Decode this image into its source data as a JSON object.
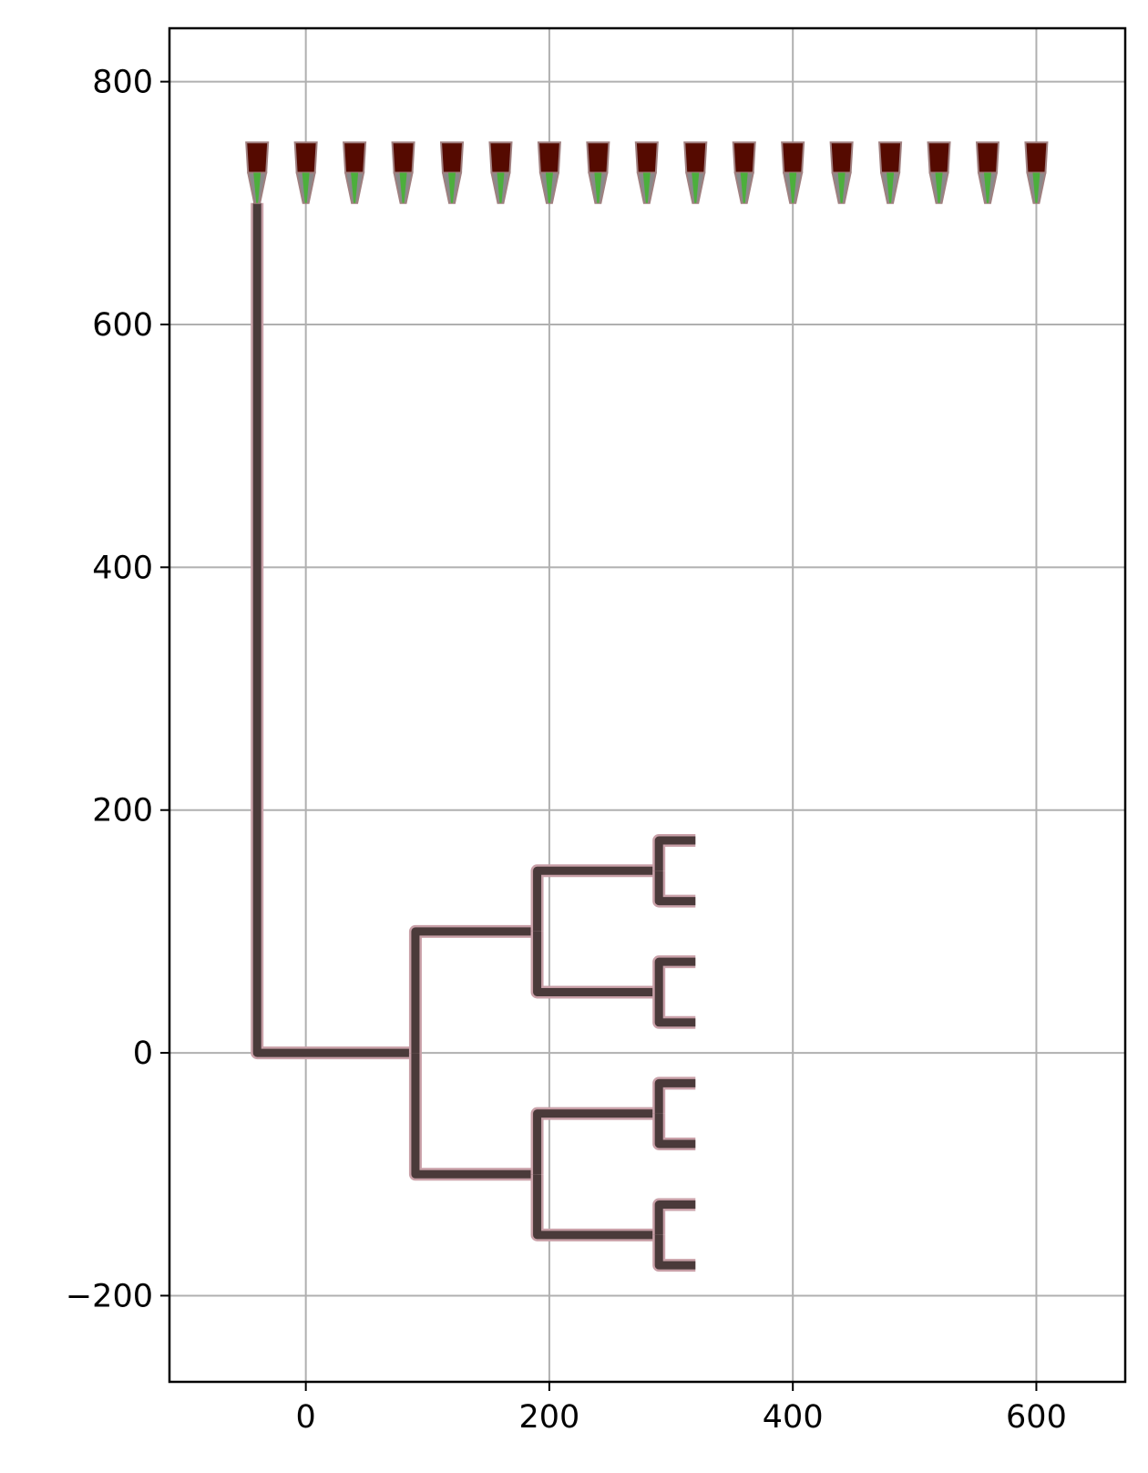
{
  "chart_data": {
    "type": "layout",
    "xlim": [
      -112,
      673
    ],
    "ylim": [
      -271,
      844
    ],
    "xticks": [
      0,
      200,
      400,
      600
    ],
    "yticks": [
      {
        "value": -200,
        "label": "−200"
      },
      0,
      200,
      400,
      600,
      800
    ],
    "grid": true,
    "grating_couplers": {
      "x": [
        -40,
        0,
        40,
        80,
        120,
        160,
        200,
        240,
        280,
        320,
        360,
        400,
        440,
        480,
        520,
        560,
        600
      ],
      "y_top": 750,
      "y_mid": 725,
      "y_bottom": 700,
      "color": "#550a00",
      "taper_color": "#4caf3c"
    },
    "route_color": "#4a3a3a",
    "routes": [
      {
        "x": [
          -40,
          -40,
          90
        ],
        "y": [
          700,
          0,
          0
        ]
      },
      {
        "x": [
          90,
          90,
          190
        ],
        "y": [
          0,
          100,
          100
        ]
      },
      {
        "x": [
          90,
          90,
          190
        ],
        "y": [
          0,
          -100,
          -100
        ]
      },
      {
        "x": [
          190,
          190,
          290
        ],
        "y": [
          100,
          150,
          150
        ]
      },
      {
        "x": [
          190,
          190,
          290
        ],
        "y": [
          100,
          50,
          50
        ]
      },
      {
        "x": [
          190,
          190,
          290
        ],
        "y": [
          -100,
          -50,
          -50
        ]
      },
      {
        "x": [
          190,
          190,
          290
        ],
        "y": [
          -100,
          -150,
          -150
        ]
      },
      {
        "x": [
          290,
          290,
          320
        ],
        "y": [
          150,
          175,
          175
        ]
      },
      {
        "x": [
          290,
          290,
          320
        ],
        "y": [
          150,
          125,
          125
        ]
      },
      {
        "x": [
          290,
          290,
          320
        ],
        "y": [
          50,
          75,
          75
        ]
      },
      {
        "x": [
          290,
          290,
          320
        ],
        "y": [
          50,
          25,
          25
        ]
      },
      {
        "x": [
          290,
          290,
          320
        ],
        "y": [
          -50,
          -25,
          -25
        ]
      },
      {
        "x": [
          290,
          290,
          320
        ],
        "y": [
          -50,
          -75,
          -75
        ]
      },
      {
        "x": [
          290,
          290,
          320
        ],
        "y": [
          -150,
          -125,
          -125
        ]
      },
      {
        "x": [
          290,
          290,
          320
        ],
        "y": [
          -150,
          -175,
          -175
        ]
      }
    ]
  }
}
